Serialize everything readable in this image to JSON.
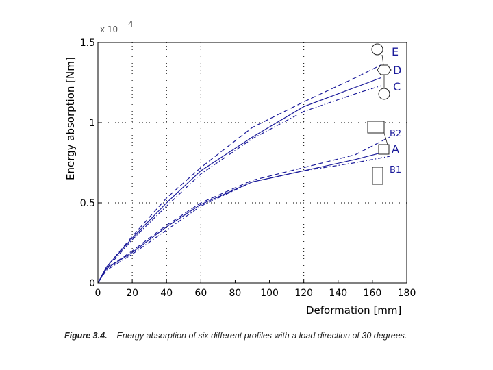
{
  "chart_data": {
    "type": "line",
    "title": "",
    "xlabel": "Deformation [mm]",
    "ylabel": "Energy absorption [Nm]",
    "y_exponent_label": "x 10",
    "y_exponent_power": "4",
    "xlim": [
      0,
      180
    ],
    "ylim": [
      0,
      1.5
    ],
    "grid": "dotted",
    "x_ticks": [
      0,
      20,
      40,
      60,
      80,
      100,
      120,
      140,
      160,
      180
    ],
    "x_tick_labels": [
      "0",
      "20",
      "40",
      "60",
      "80",
      "100",
      "120",
      "140",
      "160",
      "180"
    ],
    "y_ticks": [
      0,
      0.5,
      1,
      1.5
    ],
    "y_tick_labels": [
      "0",
      "0.5",
      "1",
      "1.5"
    ],
    "series": [
      {
        "name": "E",
        "style": "dash",
        "x": [
          0,
          5,
          20,
          40,
          60,
          90,
          120,
          150,
          165
        ],
        "y": [
          0,
          0.1,
          0.29,
          0.53,
          0.72,
          0.97,
          1.13,
          1.28,
          1.36
        ]
      },
      {
        "name": "D",
        "style": "solid",
        "x": [
          0,
          5,
          20,
          40,
          60,
          90,
          120,
          150,
          165
        ],
        "y": [
          0,
          0.1,
          0.28,
          0.5,
          0.7,
          0.91,
          1.1,
          1.22,
          1.28
        ]
      },
      {
        "name": "C",
        "style": "dashdot",
        "x": [
          0,
          5,
          20,
          40,
          60,
          90,
          120,
          150,
          165
        ],
        "y": [
          0,
          0.09,
          0.27,
          0.48,
          0.68,
          0.9,
          1.07,
          1.18,
          1.23
        ]
      },
      {
        "name": "B2",
        "style": "dash",
        "x": [
          0,
          5,
          20,
          40,
          60,
          90,
          120,
          150,
          170
        ],
        "y": [
          0,
          0.09,
          0.2,
          0.36,
          0.5,
          0.64,
          0.72,
          0.8,
          0.91
        ]
      },
      {
        "name": "A",
        "style": "solid",
        "x": [
          0,
          5,
          20,
          40,
          60,
          90,
          120,
          150,
          168
        ],
        "y": [
          0,
          0.09,
          0.19,
          0.35,
          0.49,
          0.63,
          0.7,
          0.77,
          0.82
        ]
      },
      {
        "name": "B1",
        "style": "dashdot",
        "x": [
          0,
          5,
          20,
          40,
          60,
          90,
          120,
          150,
          170
        ],
        "y": [
          0,
          0.08,
          0.18,
          0.33,
          0.48,
          0.63,
          0.7,
          0.75,
          0.79
        ]
      }
    ]
  },
  "caption": {
    "figure_label": "Figure 3.4.",
    "text": "Energy absorption of six different profiles with a load direction of 30 degrees."
  },
  "colors": {
    "line": "#1a1a9a",
    "marker_stroke": "#222222",
    "grid": "#000000"
  }
}
